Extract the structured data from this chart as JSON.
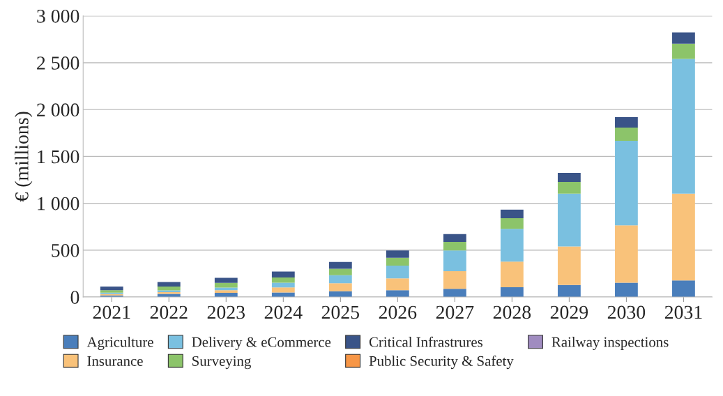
{
  "chart_data": {
    "type": "bar",
    "stacked": true,
    "categories": [
      "2021",
      "2022",
      "2023",
      "2024",
      "2025",
      "2026",
      "2027",
      "2028",
      "2029",
      "2030",
      "2031"
    ],
    "series": [
      {
        "name": "Agriculture",
        "color": "#4a7ebb",
        "values": [
          17,
          34,
          44,
          49,
          61,
          73,
          87,
          104,
          128,
          152,
          177
        ]
      },
      {
        "name": "Insurance",
        "color": "#f9c27a",
        "values": [
          15,
          19,
          29,
          53,
          85,
          126,
          188,
          273,
          412,
          613,
          926
        ]
      },
      {
        "name": "Delivery & eCommerce",
        "color": "#7ac0e0",
        "values": [
          14,
          17,
          27,
          51,
          87,
          136,
          221,
          351,
          563,
          902,
          1438
        ]
      },
      {
        "name": "Surveying",
        "color": "#8cc46a",
        "values": [
          27,
          42,
          51,
          56,
          68,
          83,
          92,
          112,
          124,
          141,
          162
        ]
      },
      {
        "name": "Critical Infrastrures",
        "color": "#3a5488",
        "values": [
          39,
          48,
          53,
          63,
          73,
          78,
          83,
          92,
          97,
          111,
          121
        ]
      },
      {
        "name": "Public Security & Safety",
        "color": "#f79646",
        "values": [
          null,
          null,
          null,
          null,
          null,
          null,
          null,
          null,
          null,
          null,
          null
        ]
      },
      {
        "name": "Railway inspections",
        "color": "#a08cc0",
        "values": [
          null,
          null,
          null,
          null,
          null,
          null,
          null,
          null,
          null,
          null,
          null
        ]
      }
    ],
    "ylabel": "€ (millions)",
    "ylim": [
      0,
      3000
    ],
    "yticks": [
      0,
      500,
      {
        "value": 1000,
        "label": "1 000"
      },
      {
        "value": 1500,
        "label": "1 500"
      },
      {
        "value": 2000,
        "label": "2 000"
      },
      {
        "value": 2500,
        "label": "2 500"
      },
      {
        "value": 3000,
        "label": "3 000"
      }
    ],
    "grid": "y",
    "legend": "bottom"
  }
}
